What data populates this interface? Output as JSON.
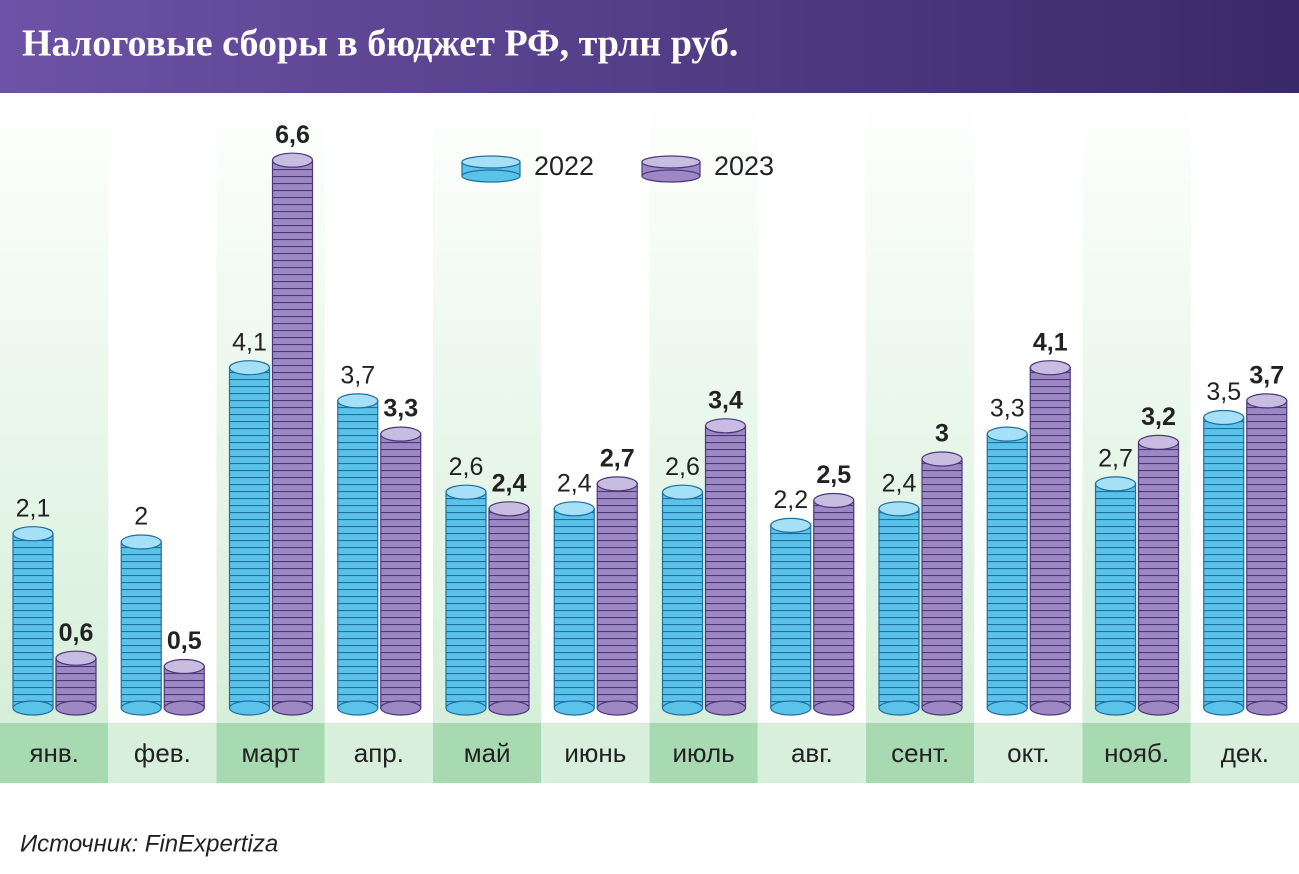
{
  "chart_data": {
    "type": "bar",
    "title": "Налоговые сборы в бюджет РФ, трлн руб.",
    "categories": [
      "янв.",
      "фев.",
      "март",
      "апр.",
      "май",
      "июнь",
      "июль",
      "авг.",
      "сент.",
      "окт.",
      "нояб.",
      "дек."
    ],
    "series": [
      {
        "name": "2022",
        "color": "#5bc3ea",
        "values": [
          2.1,
          2,
          4.1,
          3.7,
          2.6,
          2.4,
          2.6,
          2.2,
          2.4,
          3.3,
          2.7,
          3.5
        ],
        "value_labels": [
          "2,1",
          "2",
          "4,1",
          "3,7",
          "2,6",
          "2,4",
          "2,6",
          "2,2",
          "2,4",
          "3,3",
          "2,7",
          "3,5"
        ]
      },
      {
        "name": "2023",
        "color": "#9d88c4",
        "values": [
          0.6,
          0.5,
          6.6,
          3.3,
          2.4,
          2.7,
          3.4,
          2.5,
          3,
          4.1,
          3.2,
          3.7
        ],
        "value_labels": [
          "0,6",
          "0,5",
          "6,6",
          "3,3",
          "2,4",
          "2,7",
          "3,4",
          "2,5",
          "3",
          "4,1",
          "3,2",
          "3,7"
        ]
      }
    ],
    "source": "Источник: FinExpertiza"
  }
}
